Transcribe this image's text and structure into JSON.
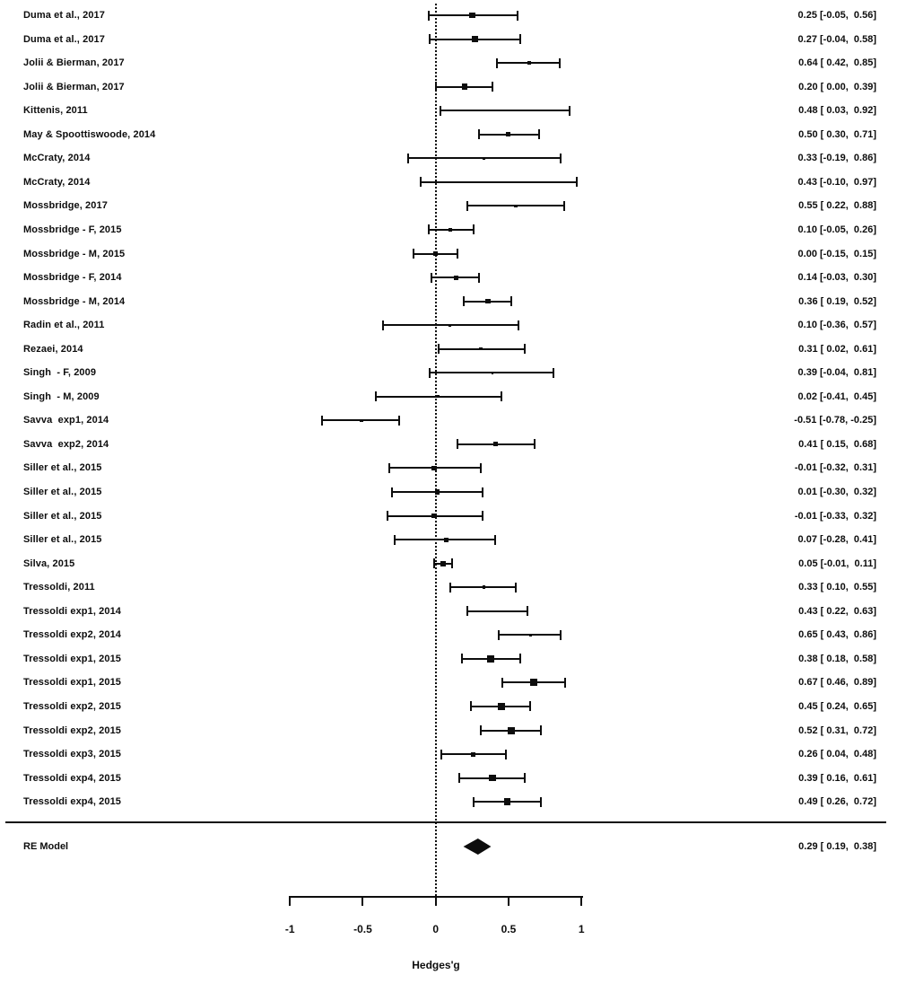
{
  "chart_data": {
    "type": "forest",
    "title": "",
    "xlabel": "Hedges'g",
    "x_ticks": [
      "-1",
      "-0.5",
      "0",
      "0.5",
      "1"
    ],
    "x_tick_values": [
      -1,
      -0.5,
      0,
      0.5,
      1
    ],
    "x_range": [
      -1,
      1
    ],
    "reference_line": 0,
    "grid": false,
    "legend_position": "none",
    "marker_color": "#0d0d0d",
    "studies": [
      {
        "label": "Duma et al., 2017",
        "estimate": 0.25,
        "ci_lower": -0.05,
        "ci_upper": 0.56,
        "display": "0.25 [-0.05,  0.56]",
        "marker_size": 6.5
      },
      {
        "label": "Duma et al., 2017",
        "estimate": 0.27,
        "ci_lower": -0.04,
        "ci_upper": 0.58,
        "display": "0.27 [-0.04,  0.58]",
        "marker_size": 6.5
      },
      {
        "label": "Jolii & Bierman, 2017",
        "estimate": 0.64,
        "ci_lower": 0.42,
        "ci_upper": 0.85,
        "display": "0.64 [ 0.42,  0.85]",
        "marker_size": 4
      },
      {
        "label": "Jolii & Bierman, 2017",
        "estimate": 0.2,
        "ci_lower": 0.0,
        "ci_upper": 0.39,
        "display": "0.20 [ 0.00,  0.39]",
        "marker_size": 6.5
      },
      {
        "label": "Kittenis, 2011",
        "estimate": 0.48,
        "ci_lower": 0.03,
        "ci_upper": 0.92,
        "display": "0.48 [ 0.03,  0.92]",
        "marker_size": 2.5
      },
      {
        "label": "May & Spoottiswoode, 2014",
        "estimate": 0.5,
        "ci_lower": 0.3,
        "ci_upper": 0.71,
        "display": "0.50 [ 0.30,  0.71]",
        "marker_size": 5
      },
      {
        "label": "McCraty, 2014",
        "estimate": 0.33,
        "ci_lower": -0.19,
        "ci_upper": 0.86,
        "display": "0.33 [-0.19,  0.86]",
        "marker_size": 3.5
      },
      {
        "label": "McCraty, 2014",
        "estimate": 0.43,
        "ci_lower": -0.1,
        "ci_upper": 0.97,
        "display": "0.43 [-0.10,  0.97]",
        "marker_size": 2.5
      },
      {
        "label": "Mossbridge, 2017",
        "estimate": 0.55,
        "ci_lower": 0.22,
        "ci_upper": 0.88,
        "display": "0.55 [ 0.22,  0.88]",
        "marker_size": 3.5
      },
      {
        "label": "Mossbridge - F, 2015",
        "estimate": 0.1,
        "ci_lower": -0.05,
        "ci_upper": 0.26,
        "display": "0.10 [-0.05,  0.26]",
        "marker_size": 4.5
      },
      {
        "label": "Mossbridge - M, 2015",
        "estimate": 0.0,
        "ci_lower": -0.15,
        "ci_upper": 0.15,
        "display": "0.00 [-0.15,  0.15]",
        "marker_size": 5
      },
      {
        "label": "Mossbridge - F, 2014",
        "estimate": 0.14,
        "ci_lower": -0.03,
        "ci_upper": 0.3,
        "display": "0.14 [-0.03,  0.30]",
        "marker_size": 5
      },
      {
        "label": "Mossbridge - M, 2014",
        "estimate": 0.36,
        "ci_lower": 0.19,
        "ci_upper": 0.52,
        "display": "0.36 [ 0.19,  0.52]",
        "marker_size": 5.5
      },
      {
        "label": "Radin et al., 2011",
        "estimate": 0.1,
        "ci_lower": -0.36,
        "ci_upper": 0.57,
        "display": "0.10 [-0.36,  0.57]",
        "marker_size": 3
      },
      {
        "label": "Rezaei, 2014",
        "estimate": 0.31,
        "ci_lower": 0.02,
        "ci_upper": 0.61,
        "display": "0.31 [ 0.02,  0.61]",
        "marker_size": 3.5
      },
      {
        "label": "Singh  - F, 2009",
        "estimate": 0.39,
        "ci_lower": -0.04,
        "ci_upper": 0.81,
        "display": "0.39 [-0.04,  0.81]",
        "marker_size": 2.5
      },
      {
        "label": "Singh  - M, 2009",
        "estimate": 0.02,
        "ci_lower": -0.41,
        "ci_upper": 0.45,
        "display": "0.02 [-0.41,  0.45]",
        "marker_size": 3
      },
      {
        "label": "Savva  exp1, 2014",
        "estimate": -0.51,
        "ci_lower": -0.78,
        "ci_upper": -0.25,
        "display": "-0.51 [-0.78, -0.25]",
        "marker_size": 3.5
      },
      {
        "label": "Savva  exp2, 2014",
        "estimate": 0.41,
        "ci_lower": 0.15,
        "ci_upper": 0.68,
        "display": "0.41 [ 0.15,  0.68]",
        "marker_size": 5
      },
      {
        "label": "Siller et al., 2015",
        "estimate": -0.01,
        "ci_lower": -0.32,
        "ci_upper": 0.31,
        "display": "-0.01 [-0.32,  0.31]",
        "marker_size": 5.5
      },
      {
        "label": "Siller et al., 2015",
        "estimate": 0.01,
        "ci_lower": -0.3,
        "ci_upper": 0.32,
        "display": "0.01 [-0.30,  0.32]",
        "marker_size": 5.5
      },
      {
        "label": "Siller et al., 2015",
        "estimate": -0.01,
        "ci_lower": -0.33,
        "ci_upper": 0.32,
        "display": "-0.01 [-0.33,  0.32]",
        "marker_size": 5.5
      },
      {
        "label": "Siller et al., 2015",
        "estimate": 0.07,
        "ci_lower": -0.28,
        "ci_upper": 0.41,
        "display": "0.07 [-0.28,  0.41]",
        "marker_size": 5
      },
      {
        "label": "Silva, 2015",
        "estimate": 0.05,
        "ci_lower": -0.01,
        "ci_upper": 0.11,
        "display": "0.05 [-0.01,  0.11]",
        "marker_size": 6
      },
      {
        "label": "Tressoldi, 2011",
        "estimate": 0.33,
        "ci_lower": 0.1,
        "ci_upper": 0.55,
        "display": "0.33 [ 0.10,  0.55]",
        "marker_size": 3.5
      },
      {
        "label": "Tressoldi exp1, 2014",
        "estimate": 0.43,
        "ci_lower": 0.22,
        "ci_upper": 0.63,
        "display": "0.43 [ 0.22,  0.63]",
        "marker_size": 2.5
      },
      {
        "label": "Tressoldi exp2, 2014",
        "estimate": 0.65,
        "ci_lower": 0.43,
        "ci_upper": 0.86,
        "display": "0.65 [ 0.43,  0.86]",
        "marker_size": 3
      },
      {
        "label": "Tressoldi exp1, 2015",
        "estimate": 0.38,
        "ci_lower": 0.18,
        "ci_upper": 0.58,
        "display": "0.38 [ 0.18,  0.58]",
        "marker_size": 8
      },
      {
        "label": "Tressoldi exp1, 2015",
        "estimate": 0.67,
        "ci_lower": 0.46,
        "ci_upper": 0.89,
        "display": "0.67 [ 0.46,  0.89]",
        "marker_size": 8
      },
      {
        "label": "Tressoldi exp2, 2015",
        "estimate": 0.45,
        "ci_lower": 0.24,
        "ci_upper": 0.65,
        "display": "0.45 [ 0.24,  0.65]",
        "marker_size": 8
      },
      {
        "label": "Tressoldi exp2, 2015",
        "estimate": 0.52,
        "ci_lower": 0.31,
        "ci_upper": 0.72,
        "display": "0.52 [ 0.31,  0.72]",
        "marker_size": 8
      },
      {
        "label": "Tressoldi exp3, 2015",
        "estimate": 0.26,
        "ci_lower": 0.04,
        "ci_upper": 0.48,
        "display": "0.26 [ 0.04,  0.48]",
        "marker_size": 5
      },
      {
        "label": "Tressoldi exp4, 2015",
        "estimate": 0.39,
        "ci_lower": 0.16,
        "ci_upper": 0.61,
        "display": "0.39 [ 0.16,  0.61]",
        "marker_size": 7.5
      },
      {
        "label": "Tressoldi exp4, 2015",
        "estimate": 0.49,
        "ci_lower": 0.26,
        "ci_upper": 0.72,
        "display": "0.49 [ 0.26,  0.72]",
        "marker_size": 7.5
      }
    ],
    "summary": {
      "label": "RE Model",
      "estimate": 0.29,
      "ci_lower": 0.19,
      "ci_upper": 0.38,
      "display": "0.29 [ 0.19,  0.38]"
    }
  }
}
